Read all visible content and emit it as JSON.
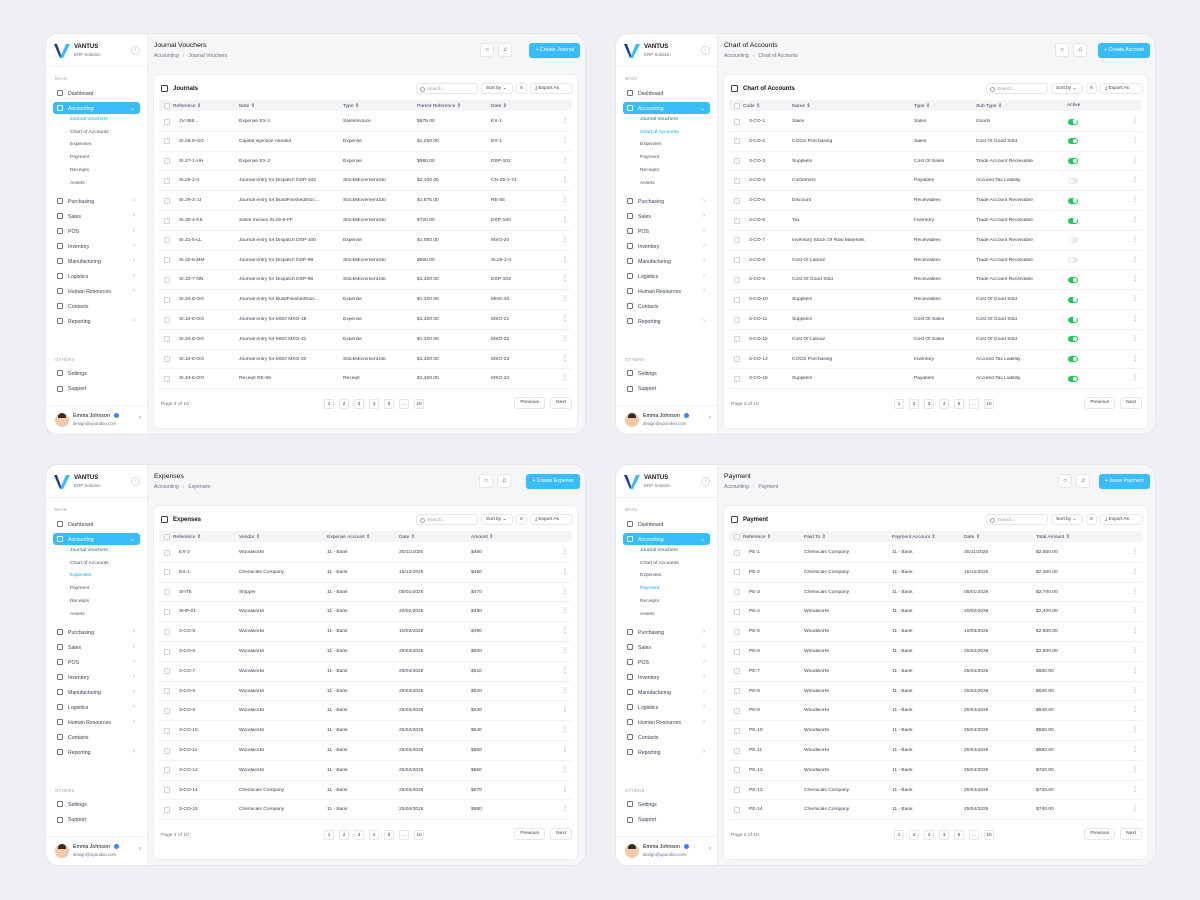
{
  "brand": {
    "name": "VANTUS",
    "subtitle": "ERP Solution"
  },
  "user": {
    "name": "Emma Johnson",
    "email": "design@opondoo.com"
  },
  "sidebar": {
    "main_label": "MAIN",
    "others_label": "OTHERS",
    "items": [
      {
        "label": "Dashboard",
        "icon": "dashboard-icon"
      },
      {
        "label": "Accounting",
        "icon": "accounting-icon"
      },
      {
        "label": "Purchasing",
        "icon": "cart-icon"
      },
      {
        "label": "Sales",
        "icon": "sales-icon"
      },
      {
        "label": "POS",
        "icon": "pos-icon"
      },
      {
        "label": "Inventory",
        "icon": "box-icon"
      },
      {
        "label": "Manufacturing",
        "icon": "factory-icon"
      },
      {
        "label": "Logistics",
        "icon": "truck-icon"
      },
      {
        "label": "Human Resources",
        "icon": "people-icon"
      },
      {
        "label": "Contacts",
        "icon": "contacts-icon"
      },
      {
        "label": "Reporting",
        "icon": "chart-icon"
      }
    ],
    "sub": [
      "Journal Vouchers",
      "Chart of Accounts",
      "Expenses",
      "Payment",
      "Receipts",
      "Assets"
    ],
    "others": [
      {
        "label": "Settings",
        "icon": "gear-icon"
      },
      {
        "label": "Support",
        "icon": "headset-icon"
      }
    ]
  },
  "common": {
    "search_placeholder": "Search...",
    "sort_by": "Sort by",
    "export_as": "Export As",
    "previous": "Previous",
    "next": "Next",
    "page_text": "Page 2 of 10",
    "pages": [
      "1",
      "2",
      "3",
      "4",
      "5",
      "...",
      "10"
    ],
    "crumb_root": "Accounting"
  },
  "panels": [
    {
      "title": "Journal Vouchers",
      "crumb": "Journal Vouchers",
      "action": "Create Journal",
      "card_title": "Journals",
      "active_sub": 0,
      "headers": [
        "Reference",
        "Note",
        "Type",
        "Parent Reference",
        "Date"
      ],
      "rows": [
        [
          "JV-368...",
          "Expense EX-1",
          "SalesInvoice",
          "$675.00",
          "EX-1"
        ],
        [
          "SI.26-9-GG",
          "Capital injection needed",
          "Expense",
          "$1,250.00",
          "EX-1"
        ],
        [
          "SI.27-1-HH",
          "Expense EX-2",
          "Expense",
          "$980.00",
          "DSP-102"
        ],
        [
          "SI.28-2-II",
          "Journal entry for Dispatch DSP-102",
          "StockMovementJob",
          "$2,100.00",
          "CN-25-1-74"
        ],
        [
          "SI.29-3-JJ",
          "Journal entry for BuildFinishedStoc...",
          "StockMovementJob",
          "$1,875.00",
          "RE-55"
        ],
        [
          "SI.30-4-KK",
          "Sales Invoice SI.25-8-FF",
          "StockMovementJob",
          "$720.00",
          "DSP-100"
        ],
        [
          "SI.31-5-LL",
          "Journal entry for Dispatch DSP-100",
          "Expense",
          "$1,050.00",
          "MSO-20"
        ],
        [
          "SI.32-6-MM",
          "Journal entry for Dispatch DSP-99",
          "StockMovementJob",
          "$560.00",
          "SI.28-2-II"
        ],
        [
          "SI.33-7-NN",
          "Journal entry for Dispatch DSP-98",
          "StockMovementJob",
          "$1,320.00",
          "DSP-104"
        ],
        [
          "SI.34-8-OO",
          "Journal entry for BuildFinishedStoc...",
          "Expense",
          "$1,320.00",
          "MNS-43"
        ],
        [
          "SI.34-8-OO",
          "Journal entry for MSO MSO-18",
          "Expense",
          "$1,320.00",
          "MSO-21"
        ],
        [
          "SI.34-8-OO",
          "Journal entry for MSO MSO-21",
          "Expense",
          "$1,320.00",
          "MSO-22"
        ],
        [
          "SI.34-8-OO",
          "Journal entry for MSO MSO-20",
          "StockMovementJob",
          "$1,320.00",
          "MSO-23"
        ],
        [
          "SI.34-8-OO",
          "Receipt RE-58",
          "Receipt",
          "$1,320.00",
          "MSO-24"
        ]
      ]
    },
    {
      "title": "Chart of Accounts",
      "crumb": "Chart of Accounts",
      "action": "Create Account",
      "card_title": "Chart of Accounts",
      "active_sub": 1,
      "headers": [
        "Code",
        "Name",
        "Type",
        "Sub Type",
        "Active"
      ],
      "rows": [
        [
          "3-CO-1",
          "Sales",
          "Sales",
          "Goods",
          "on"
        ],
        [
          "3-CO-2",
          "COGS Purchasing",
          "Sales",
          "Cost Of Good Sold",
          "on"
        ],
        [
          "3-CO-3",
          "Suppliers",
          "Cost Of Sales",
          "Trade Account Receivable",
          "on"
        ],
        [
          "3-CO-4",
          "Customers",
          "Payables",
          "Accured Tax Liability",
          "off"
        ],
        [
          "3-CO-5",
          "Discount",
          "Receivables",
          "Trade Account Receivable",
          "on"
        ],
        [
          "3-CO-6",
          "Tax",
          "Inventory",
          "Trade Account Receivable",
          "on"
        ],
        [
          "3-CO-7",
          "Inventory Stock Of Raw Materials",
          "Receivables",
          "Trade Account Receivable",
          "off"
        ],
        [
          "3-CO-8",
          "Cost Of Labour",
          "Receivables",
          "Trade Account Receivable",
          "off"
        ],
        [
          "3-CO-9",
          "Cost Of Good Sold",
          "Receivables",
          "Trade Account Receivable",
          "on"
        ],
        [
          "3-CO-10",
          "Suppliers",
          "Receivables",
          "Cost Of Good Sold",
          "on"
        ],
        [
          "3-CO-11",
          "Suppliers",
          "Cost Of Sales",
          "Cost Of Good Sold",
          "on"
        ],
        [
          "3-CO-12",
          "Cost Of Labour",
          "Cost Of Sales",
          "Cost Of Good Sold",
          "on"
        ],
        [
          "3-CO-14",
          "COGS Purchasing",
          "Inventory",
          "Accured Tax Liability",
          "on"
        ],
        [
          "3-CO-15",
          "Suppliers",
          "Payables",
          "Accured Tax Liability",
          "on"
        ]
      ]
    },
    {
      "title": "Expenses",
      "crumb": "Expenses",
      "action": "Create Expense",
      "card_title": "Expenses",
      "active_sub": 2,
      "headers": [
        "Reference",
        "Vendor",
        "Expense Account",
        "Date",
        "Amount"
      ],
      "rows": [
        [
          "EX-2",
          "Woodworks",
          "11 - Bank",
          "30/11/2025",
          "$450"
        ],
        [
          "EX-1",
          "Chemicals Company",
          "11 - Bank",
          "15/12/2025",
          "$460"
        ],
        [
          "SHT5",
          "Shipper",
          "11 - Bank",
          "05/01/2026",
          "$470"
        ],
        [
          "SHP-01",
          "Woodworks",
          "11 - Bank",
          "20/02/2026",
          "$480"
        ],
        [
          "3-CO-5",
          "Woodworks",
          "11 - Bank",
          "10/03/2026",
          "$490"
        ],
        [
          "3-CO-6",
          "Woodworks",
          "11 - Bank",
          "25/04/2026",
          "$500"
        ],
        [
          "3-CO-7",
          "Woodworks",
          "11 - Bank",
          "25/04/2026",
          "$510"
        ],
        [
          "3-CO-8",
          "Woodworks",
          "11 - Bank",
          "25/04/2026",
          "$520"
        ],
        [
          "3-CO-9",
          "Woodworks",
          "11 - Bank",
          "25/04/2026",
          "$530"
        ],
        [
          "3-CO-10",
          "Woodworks",
          "11 - Bank",
          "25/04/2026",
          "$540"
        ],
        [
          "3-CO-11",
          "Woodworks",
          "11 - Bank",
          "25/04/2026",
          "$550"
        ],
        [
          "3-CO-12",
          "Woodworks",
          "11 - Bank",
          "25/04/2026",
          "$560"
        ],
        [
          "3-CO-14",
          "Chemicals Company",
          "11 - Bank",
          "25/04/2026",
          "$570"
        ],
        [
          "3-CO-15",
          "Chemicals Company",
          "11 - Bank",
          "25/04/2026",
          "$580"
        ]
      ]
    },
    {
      "title": "Payment",
      "crumb": "Payment",
      "action": "Issue Payment",
      "card_title": "Payment",
      "active_sub": 3,
      "headers": [
        "Reference",
        "Paid To",
        "Payment Account",
        "Date",
        "Total Amount"
      ],
      "rows": [
        [
          "PE-1",
          "Chemicals Company",
          "11 - Bank",
          "30/11/2025",
          "$2,500.00"
        ],
        [
          "PE-2",
          "Chemicals Company",
          "11 - Bank",
          "15/12/2025",
          "$2,300.00"
        ],
        [
          "PE-3",
          "Chemicals Company",
          "11 - Bank",
          "05/01/2026",
          "$2,700.00"
        ],
        [
          "PE-4",
          "Woodworks",
          "11 - Bank",
          "20/02/2026",
          "$2,400.00"
        ],
        [
          "PE-5",
          "Woodworks",
          "11 - Bank",
          "10/03/2026",
          "$2,600.00"
        ],
        [
          "PE-6",
          "Woodworks",
          "11 - Bank",
          "25/04/2026",
          "$2,800.00"
        ],
        [
          "PE-7",
          "Woodworks",
          "11 - Bank",
          "25/04/2026",
          "$600.00"
        ],
        [
          "PE-8",
          "Woodworks",
          "11 - Bank",
          "25/04/2026",
          "$620.00"
        ],
        [
          "PE-9",
          "Woodworks",
          "11 - Bank",
          "25/04/2026",
          "$640.00"
        ],
        [
          "PE-10",
          "Woodworks",
          "11 - Bank",
          "25/04/2026",
          "$660.00"
        ],
        [
          "PE-11",
          "Woodworks",
          "11 - Bank",
          "25/04/2026",
          "$680.00"
        ],
        [
          "PE-12",
          "Woodworks",
          "11 - Bank",
          "25/04/2026",
          "$700.00"
        ],
        [
          "PE-13",
          "Chemicals Company",
          "11 - Bank",
          "25/04/2026",
          "$720.00"
        ],
        [
          "PE-14",
          "Chemicals Company",
          "11 - Bank",
          "25/04/2026",
          "$740.00"
        ]
      ]
    }
  ]
}
